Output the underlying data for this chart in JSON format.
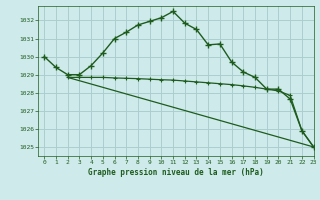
{
  "title": "Graphe pression niveau de la mer (hPa)",
  "background_color": "#ceeaea",
  "grid_color": "#aacece",
  "line_color": "#1e5c1e",
  "xlim": [
    -0.5,
    23
  ],
  "ylim": [
    1024.5,
    1032.8
  ],
  "yticks": [
    1025,
    1026,
    1027,
    1028,
    1029,
    1030,
    1031,
    1032
  ],
  "xticks": [
    0,
    1,
    2,
    3,
    4,
    5,
    6,
    7,
    8,
    9,
    10,
    11,
    12,
    13,
    14,
    15,
    16,
    17,
    18,
    19,
    20,
    21,
    22,
    23
  ],
  "series1_x": [
    0,
    1,
    2,
    3,
    4,
    5,
    6,
    7,
    8,
    9,
    10,
    11,
    12,
    13,
    14,
    15,
    16,
    17,
    18,
    19,
    20,
    21,
    22,
    23
  ],
  "series1_y": [
    1030.0,
    1029.4,
    1029.0,
    1029.0,
    1029.5,
    1030.2,
    1031.0,
    1031.35,
    1031.75,
    1031.95,
    1032.15,
    1032.5,
    1031.85,
    1031.5,
    1030.65,
    1030.7,
    1029.7,
    1029.15,
    1028.85,
    1028.2,
    1028.2,
    1027.65,
    1025.9,
    1025.0
  ],
  "series2_x": [
    2,
    3,
    4,
    5,
    6,
    7,
    8,
    9,
    10,
    11,
    12,
    13,
    14,
    15,
    16,
    17,
    18,
    19,
    20,
    21,
    22,
    23
  ],
  "series2_y": [
    1028.85,
    1028.85,
    1028.85,
    1028.85,
    1028.82,
    1028.8,
    1028.78,
    1028.75,
    1028.72,
    1028.7,
    1028.65,
    1028.6,
    1028.55,
    1028.5,
    1028.45,
    1028.38,
    1028.3,
    1028.2,
    1028.1,
    1027.85,
    1025.9,
    1025.0
  ],
  "series3_x": [
    2,
    23
  ],
  "series3_y": [
    1028.85,
    1025.0
  ]
}
